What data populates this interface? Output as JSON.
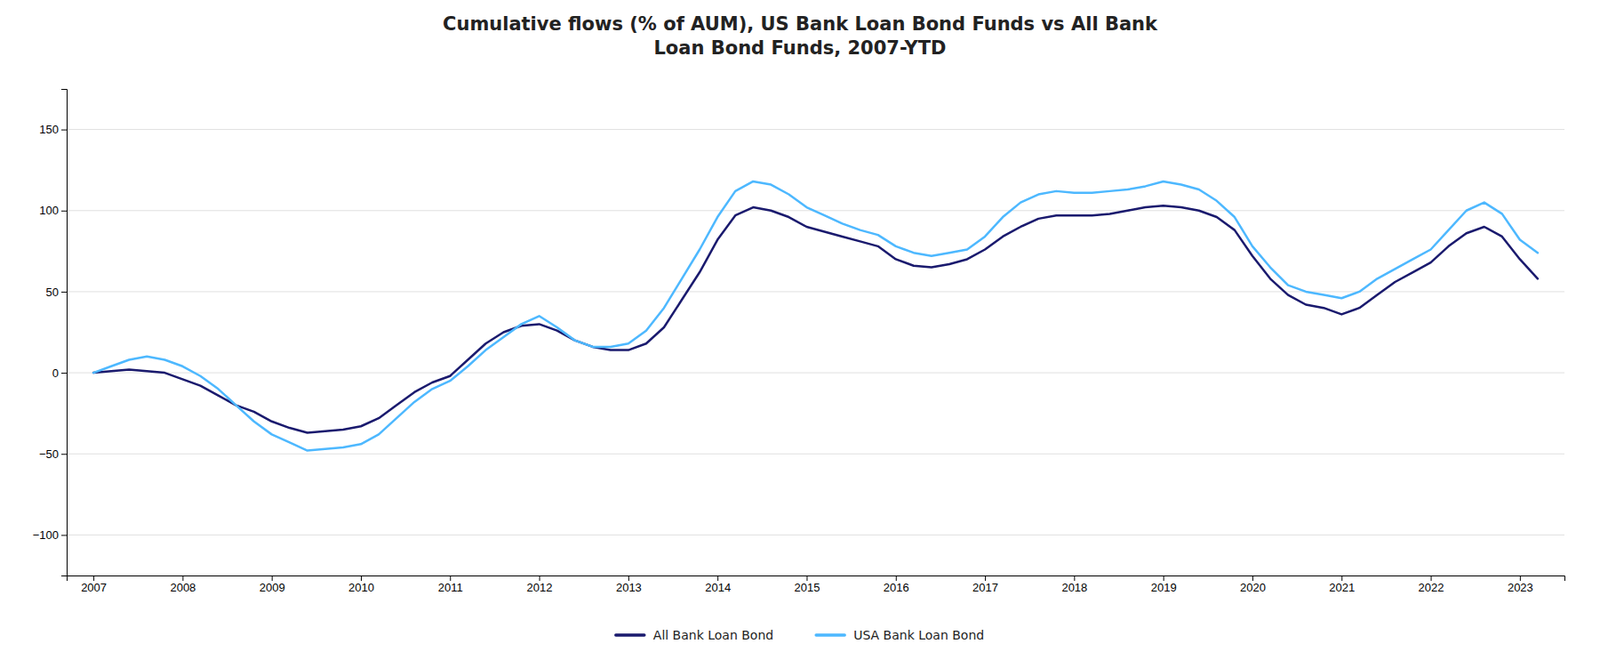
{
  "chart_data": {
    "type": "line",
    "title": "Cumulative flows (% of AUM), US Bank Loan Bond Funds vs All Bank\nLoan Bond Funds, 2007-YTD",
    "x": [
      2007.0,
      2007.2,
      2007.4,
      2007.6,
      2007.8,
      2008.0,
      2008.2,
      2008.4,
      2008.6,
      2008.8,
      2009.0,
      2009.2,
      2009.4,
      2009.6,
      2009.8,
      2010.0,
      2010.2,
      2010.4,
      2010.6,
      2010.8,
      2011.0,
      2011.2,
      2011.4,
      2011.6,
      2011.8,
      2012.0,
      2012.2,
      2012.4,
      2012.6,
      2012.8,
      2013.0,
      2013.2,
      2013.4,
      2013.6,
      2013.8,
      2014.0,
      2014.2,
      2014.4,
      2014.6,
      2014.8,
      2015.0,
      2015.2,
      2015.4,
      2015.6,
      2015.8,
      2016.0,
      2016.2,
      2016.4,
      2016.6,
      2016.8,
      2017.0,
      2017.2,
      2017.4,
      2017.6,
      2017.8,
      2018.0,
      2018.2,
      2018.4,
      2018.6,
      2018.8,
      2019.0,
      2019.2,
      2019.4,
      2019.6,
      2019.8,
      2020.0,
      2020.2,
      2020.4,
      2020.6,
      2020.8,
      2021.0,
      2021.2,
      2021.4,
      2021.6,
      2021.8,
      2022.0,
      2022.2,
      2022.4,
      2022.6,
      2022.8,
      2023.0,
      2023.2
    ],
    "series": [
      {
        "name": "All Bank Loan Bond",
        "color": "#1a1a6e",
        "values": [
          0,
          1,
          2,
          1,
          0,
          -4,
          -8,
          -14,
          -20,
          -24,
          -30,
          -34,
          -37,
          -36,
          -35,
          -33,
          -28,
          -20,
          -12,
          -6,
          -2,
          8,
          18,
          25,
          29,
          30,
          26,
          20,
          16,
          14,
          14,
          18,
          28,
          45,
          62,
          82,
          97,
          102,
          100,
          96,
          90,
          87,
          84,
          81,
          78,
          70,
          66,
          65,
          67,
          70,
          76,
          84,
          90,
          95,
          97,
          97,
          97,
          98,
          100,
          102,
          103,
          102,
          100,
          96,
          88,
          72,
          58,
          48,
          42,
          40,
          36,
          40,
          48,
          56,
          62,
          68,
          78,
          86,
          90,
          84,
          70,
          58
        ]
      },
      {
        "name": "USA Bank Loan Bond",
        "color": "#4db8ff",
        "values": [
          0,
          4,
          8,
          10,
          8,
          4,
          -2,
          -10,
          -20,
          -30,
          -38,
          -43,
          -48,
          -47,
          -46,
          -44,
          -38,
          -28,
          -18,
          -10,
          -5,
          4,
          14,
          22,
          30,
          35,
          28,
          20,
          16,
          16,
          18,
          26,
          40,
          58,
          76,
          96,
          112,
          118,
          116,
          110,
          102,
          97,
          92,
          88,
          85,
          78,
          74,
          72,
          74,
          76,
          84,
          96,
          105,
          110,
          112,
          111,
          111,
          112,
          113,
          115,
          118,
          116,
          113,
          106,
          96,
          78,
          65,
          54,
          50,
          48,
          46,
          50,
          58,
          64,
          70,
          76,
          88,
          100,
          105,
          98,
          82,
          74
        ]
      }
    ],
    "xlim": [
      2006.7,
      2023.5
    ],
    "xticks": [
      2007,
      2008,
      2009,
      2010,
      2011,
      2012,
      2013,
      2014,
      2015,
      2016,
      2017,
      2018,
      2019,
      2020,
      2021,
      2022,
      2023
    ],
    "ylim": [
      -125,
      175
    ],
    "yticks": [
      {
        "value": -100,
        "label": "−100"
      },
      {
        "value": -50,
        "label": "−50"
      },
      0,
      50,
      100,
      150
    ],
    "grid": true,
    "legend": "bottom"
  }
}
